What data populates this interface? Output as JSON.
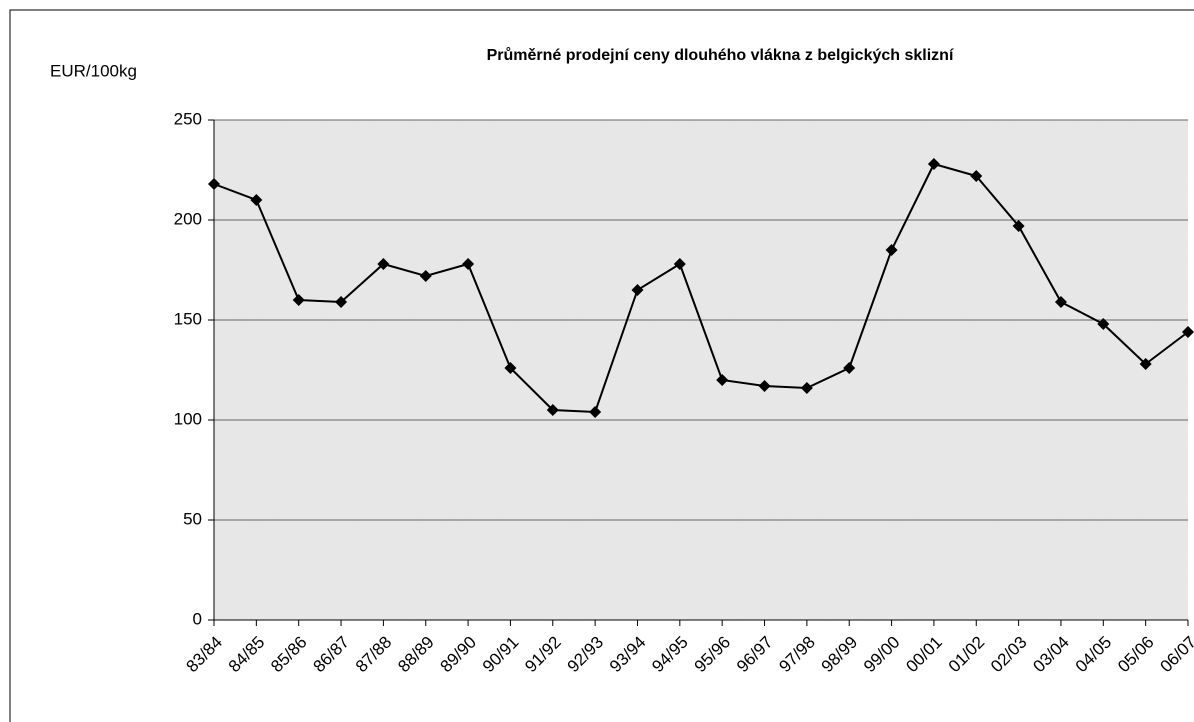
{
  "chart_data": {
    "type": "line",
    "title": "Průměrné prodejní ceny dlouhého vlákna z belgických sklizní",
    "y_label": "EUR/100kg",
    "categories": [
      "83/84",
      "84/85",
      "85/86",
      "86/87",
      "87/88",
      "88/89",
      "89/90",
      "90/91",
      "91/92",
      "92/93",
      "93/94",
      "94/95",
      "95/96",
      "96/97",
      "97/98",
      "98/99",
      "99/00",
      "00/01",
      "01/02",
      "02/03",
      "03/04",
      "04/05",
      "05/06",
      "06/07"
    ],
    "series": [
      {
        "name": "EUR/100kg",
        "color": "#000000",
        "values": [
          218,
          210,
          160,
          159,
          178,
          172,
          178,
          126,
          105,
          104,
          165,
          178,
          120,
          117,
          116,
          126,
          185,
          228,
          222,
          197,
          159,
          148,
          128,
          144
        ]
      }
    ],
    "ylim": [
      0,
      250
    ],
    "yticks": [
      0,
      50,
      100,
      150,
      200,
      250
    ],
    "grid": true,
    "marker": "diamond",
    "legend": false
  }
}
